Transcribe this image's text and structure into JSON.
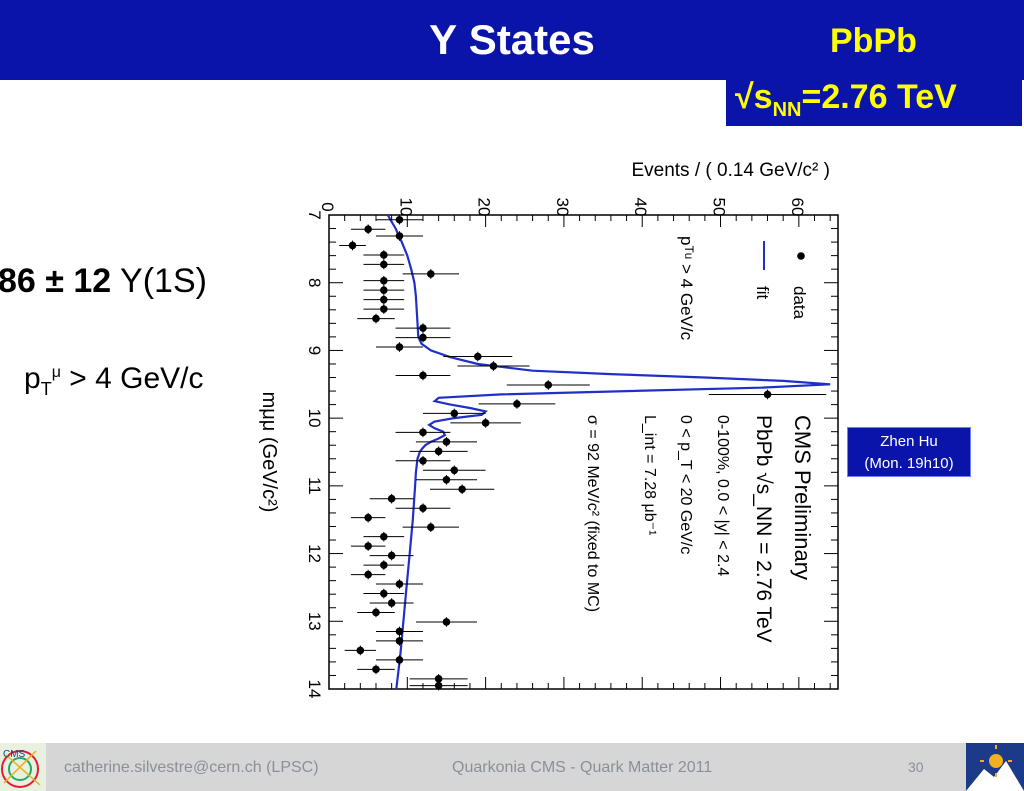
{
  "slide": {
    "title": "Υ States",
    "badge_line1": "PbPb",
    "energy_prefix": "√s",
    "energy_sub": "NN",
    "energy_suffix": "=2.76 TeV",
    "yield_number": "86 ± 12",
    "yield_state": "Υ(1S)",
    "cut_p": "p",
    "cut_sub": "T",
    "cut_sup": "μ",
    "cut_rest": " > 4 GeV/c",
    "speaker_name": "Zhen Hu",
    "speaker_time": "(Mon. 19h10)"
  },
  "footer": {
    "contact": "catherine.silvestre@cern.ch (LPSC)",
    "talk": "Quarkonia CMS - Quark Matter 2011",
    "page": "30"
  },
  "logos": {
    "left": "cms-logo",
    "right": "lpsc-logo"
  },
  "colors": {
    "title_bar": "#0a14a8",
    "badge_text": "#ffff00",
    "fit_line": "#1f2fc8"
  },
  "chart_data": {
    "type": "scatter",
    "orientation": "rotated-90",
    "xlabel": "mμμ (GeV/c²)",
    "ylabel": "Events / ( 0.14 GeV/c² )",
    "xlim": [
      7,
      14
    ],
    "ylim": [
      0,
      65
    ],
    "x_ticks": [
      "7",
      "8",
      "9",
      "10",
      "11",
      "12",
      "13",
      "14"
    ],
    "y_ticks": [
      "0",
      "10",
      "20",
      "30",
      "40",
      "50",
      "60"
    ],
    "legend": [
      "data",
      "fit"
    ],
    "cut_label": "pᵀᵘ > 4 GeV/c",
    "annotations": [
      "CMS Preliminary",
      "PbPb √s_NN = 2.76 TeV",
      "0-100%, 0.0 < |y| < 2.4",
      "0 < p_T < 20 GeV/c",
      "L_int = 7.28 μb⁻¹",
      "σ = 92 MeV/c² (fixed to MC)"
    ],
    "series": [
      {
        "name": "data",
        "x": [
          7.07,
          7.21,
          7.31,
          7.45,
          7.59,
          7.73,
          7.87,
          7.97,
          8.11,
          8.25,
          8.39,
          8.53,
          8.67,
          8.81,
          8.95,
          9.09,
          9.23,
          9.37,
          9.51,
          9.65,
          9.79,
          9.93,
          10.07,
          10.21,
          10.35,
          10.49,
          10.63,
          10.77,
          10.91,
          11.05,
          11.19,
          11.33,
          11.47,
          11.61,
          11.75,
          11.89,
          12.03,
          12.17,
          12.31,
          12.45,
          12.59,
          12.73,
          12.87,
          13.01,
          13.15,
          13.29,
          13.43,
          13.57,
          13.71,
          13.85,
          13.95
        ],
        "y": [
          9,
          5,
          9,
          3,
          7,
          7,
          13,
          7,
          7,
          7,
          7,
          6,
          12,
          12,
          9,
          19,
          21,
          12,
          28,
          56,
          24,
          16,
          20,
          12,
          15,
          14,
          12,
          16,
          15,
          17,
          8,
          12,
          5,
          13,
          7,
          5,
          8,
          7,
          5,
          9,
          7,
          8,
          6,
          15,
          9,
          9,
          4,
          9,
          6,
          14,
          14
        ],
        "err": [
          3,
          2.2,
          3,
          1.7,
          2.6,
          2.6,
          3.6,
          2.6,
          2.6,
          2.6,
          2.6,
          2.4,
          3.5,
          3.5,
          3,
          4.4,
          4.6,
          3.5,
          5.3,
          7.5,
          4.9,
          4,
          4.5,
          3.5,
          3.9,
          3.7,
          3.5,
          4,
          3.9,
          4.1,
          2.8,
          3.5,
          2.2,
          3.6,
          2.6,
          2.2,
          2.8,
          2.6,
          2.2,
          3,
          2.6,
          2.8,
          2.4,
          3.9,
          3,
          3,
          2,
          3,
          2.4,
          3.7,
          3.7
        ]
      }
    ],
    "fit": {
      "name": "fit",
      "x": [
        7.0,
        7.2,
        7.4,
        7.6,
        7.8,
        8.0,
        8.2,
        8.4,
        8.6,
        8.8,
        8.9,
        9.0,
        9.1,
        9.2,
        9.3,
        9.35,
        9.4,
        9.45,
        9.5,
        9.55,
        9.6,
        9.65,
        9.7,
        9.75,
        9.8,
        9.85,
        9.9,
        9.95,
        10.0,
        10.05,
        10.1,
        10.15,
        10.2,
        10.25,
        10.3,
        10.35,
        10.4,
        10.45,
        10.5,
        10.6,
        10.8,
        11.0,
        11.5,
        12.0,
        12.5,
        13.0,
        13.5,
        14.0
      ],
      "y": [
        7.5,
        8.5,
        9.3,
        10.0,
        10.5,
        10.9,
        11.1,
        11.2,
        11.3,
        11.4,
        11.8,
        13.0,
        15.5,
        19.0,
        26.0,
        36.0,
        48.0,
        58.0,
        64.0,
        55.0,
        38.0,
        22.0,
        14.0,
        13.5,
        15.5,
        18.0,
        20.0,
        19.5,
        16.0,
        13.5,
        12.8,
        13.5,
        14.6,
        14.8,
        14.0,
        13.0,
        12.3,
        11.9,
        11.6,
        11.3,
        11.1,
        11.0,
        10.7,
        10.3,
        9.9,
        9.5,
        9.1,
        8.6
      ]
    }
  }
}
